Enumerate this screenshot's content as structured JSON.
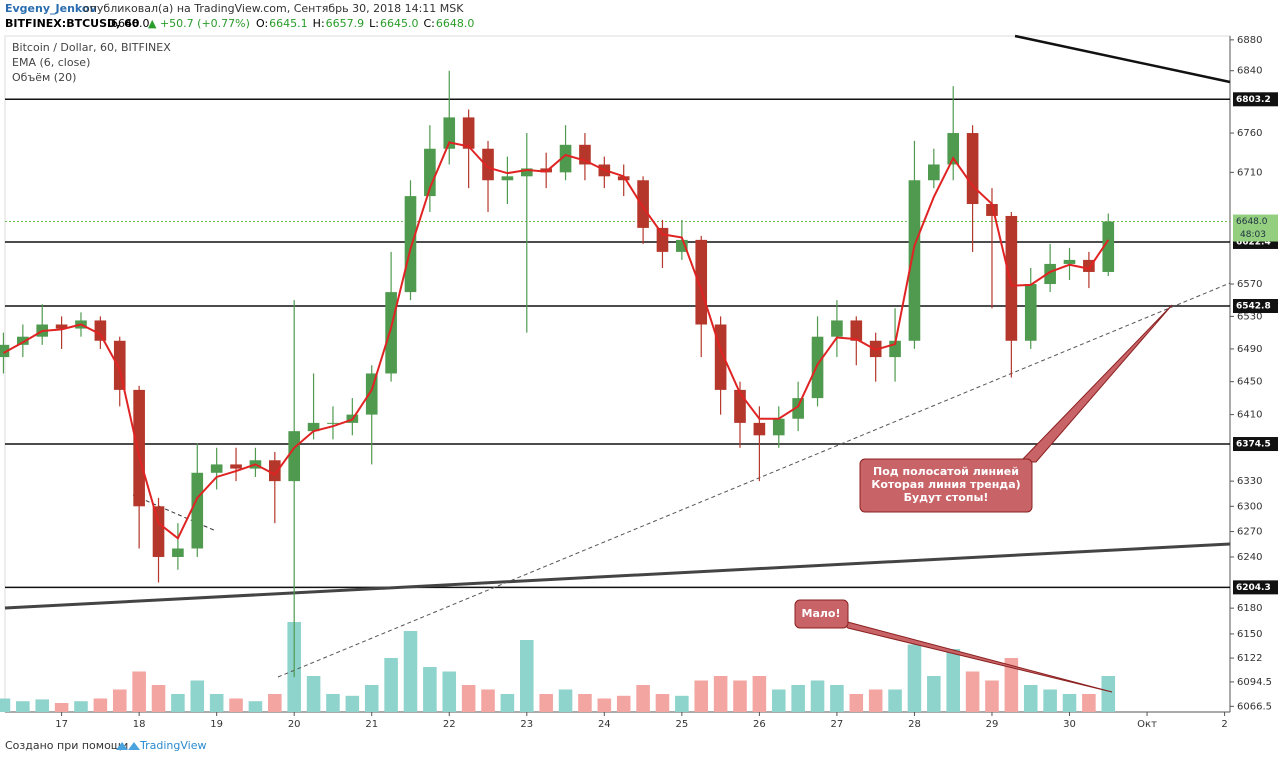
{
  "header": {
    "author": "Evgeny_Jenkov",
    "published": "опубликовал(а) на TradingView.com, Сентябрь 30, 2018 14:11 MSK",
    "symbol": "BITFINEX:BTCUSD, 60",
    "last": "6648.0",
    "change": "▲ +50.7 (+0.77%)",
    "ohlc": [
      {
        "label": "O:",
        "value": "6645.1"
      },
      {
        "label": "H:",
        "value": "6657.9"
      },
      {
        "label": "L:",
        "value": "6645.0"
      },
      {
        "label": "C:",
        "value": "6648.0"
      }
    ]
  },
  "footer": {
    "text": "Создано при помощи",
    "brand": "TradingView"
  },
  "chart_data": {
    "type": "candlestick",
    "title": "Bitcoin / Dollar, 60, BITFINEX",
    "log_scale": true,
    "up_color": "#4f9a4f",
    "down_color": "#b5372b",
    "volume_up_color": "#8fd3cd",
    "volume_down_color": "#f3a5a1",
    "x": [
      16.25,
      16.5,
      16.75,
      17,
      17.25,
      17.5,
      17.75,
      18,
      18.25,
      18.5,
      18.75,
      19,
      19.25,
      19.5,
      19.75,
      20,
      20.25,
      20.5,
      20.75,
      21,
      21.25,
      21.5,
      21.75,
      22,
      22.25,
      22.5,
      22.75,
      23,
      23.25,
      23.5,
      23.75,
      24,
      24.25,
      24.5,
      24.75,
      25,
      25.25,
      25.5,
      25.75,
      26,
      26.25,
      26.5,
      26.75,
      27,
      27.25,
      27.5,
      27.75,
      28,
      28.25,
      28.5,
      28.75,
      29,
      29.25,
      29.5,
      29.75,
      30,
      30.25,
      30.5
    ],
    "open": [
      6480,
      6495,
      6505,
      6520,
      6515,
      6525,
      6500,
      6440,
      6300,
      6240,
      6250,
      6340,
      6350,
      6345,
      6355,
      6330,
      6390,
      6400,
      6400,
      6410,
      6460,
      6560,
      6680,
      6740,
      6780,
      6740,
      6700,
      6705,
      6715,
      6710,
      6745,
      6720,
      6705,
      6700,
      6640,
      6610,
      6625,
      6520,
      6440,
      6400,
      6385,
      6405,
      6430,
      6505,
      6525,
      6500,
      6480,
      6500,
      6700,
      6720,
      6760,
      6670,
      6655,
      6500,
      6570,
      6595,
      6600,
      6585
    ],
    "high": [
      6510,
      6520,
      6545,
      6530,
      6535,
      6530,
      6505,
      6445,
      6310,
      6280,
      6375,
      6370,
      6370,
      6370,
      6365,
      6550,
      6460,
      6420,
      6430,
      6470,
      6610,
      6700,
      6770,
      6840,
      6790,
      6750,
      6730,
      6760,
      6735,
      6770,
      6760,
      6730,
      6720,
      6705,
      6650,
      6650,
      6630,
      6530,
      6450,
      6420,
      6420,
      6450,
      6530,
      6550,
      6530,
      6510,
      6540,
      6750,
      6740,
      6820,
      6770,
      6690,
      6660,
      6590,
      6620,
      6615,
      6610,
      6658
    ],
    "low": [
      6460,
      6480,
      6495,
      6490,
      6505,
      6490,
      6420,
      6250,
      6210,
      6225,
      6240,
      6320,
      6330,
      6335,
      6280,
      6100,
      6380,
      6380,
      6385,
      6350,
      6450,
      6550,
      6660,
      6720,
      6690,
      6660,
      6670,
      6510,
      6690,
      6700,
      6700,
      6690,
      6680,
      6620,
      6590,
      6600,
      6480,
      6410,
      6370,
      6330,
      6370,
      6390,
      6420,
      6480,
      6470,
      6450,
      6450,
      6490,
      6690,
      6700,
      6610,
      6540,
      6455,
      6490,
      6560,
      6575,
      6565,
      6580
    ],
    "close": [
      6495,
      6505,
      6520,
      6515,
      6525,
      6500,
      6440,
      6300,
      6240,
      6250,
      6340,
      6350,
      6345,
      6355,
      6330,
      6390,
      6400,
      6400,
      6410,
      6460,
      6560,
      6680,
      6740,
      6780,
      6740,
      6700,
      6705,
      6715,
      6710,
      6745,
      6720,
      6705,
      6700,
      6640,
      6610,
      6625,
      6520,
      6440,
      6400,
      6385,
      6405,
      6430,
      6505,
      6525,
      6500,
      6480,
      6500,
      6700,
      6720,
      6760,
      6670,
      6655,
      6500,
      6570,
      6595,
      6600,
      6585,
      6648
    ],
    "series": [
      {
        "name": "EMA (6, close)",
        "color": "#e02424",
        "values": [
          6485,
          6498,
          6512,
          6514,
          6520,
          6508,
          6465,
          6360,
          6280,
          6262,
          6310,
          6335,
          6342,
          6350,
          6338,
          6370,
          6390,
          6396,
          6404,
          6440,
          6516,
          6614,
          6690,
          6748,
          6743,
          6716,
          6709,
          6713,
          6711,
          6732,
          6725,
          6713,
          6705,
          6666,
          6632,
          6628,
          6563,
          6489,
          6436,
          6405,
          6405,
          6420,
          6471,
          6504,
          6502,
          6489,
          6496,
          6618,
          6679,
          6728,
          6693,
          6670,
          6568,
          6569,
          6585,
          6594,
          6589,
          6625
        ]
      }
    ],
    "volume": {
      "name": "Объём (20)",
      "ylim": [
        0,
        100
      ],
      "values": [
        15,
        12,
        14,
        10,
        12,
        15,
        25,
        45,
        30,
        20,
        35,
        20,
        15,
        12,
        20,
        100,
        40,
        20,
        18,
        30,
        60,
        90,
        50,
        45,
        30,
        25,
        20,
        80,
        20,
        25,
        20,
        15,
        18,
        30,
        20,
        18,
        35,
        40,
        35,
        40,
        25,
        30,
        35,
        30,
        20,
        25,
        25,
        75,
        40,
        70,
        45,
        35,
        60,
        30,
        25,
        20,
        20,
        40
      ]
    },
    "levels": [
      6803.2,
      6622.4,
      6542.8,
      6374.5,
      6204.3
    ],
    "last_price": 6648,
    "last_price_label": "6648.0",
    "countdown": "48:03",
    "xlim": [
      16.27,
      32.07
    ],
    "ylim": [
      6060,
      6885
    ],
    "xticks": [
      17,
      18,
      19,
      20,
      21,
      22,
      23,
      24,
      25,
      26,
      27,
      28,
      29,
      30,
      {
        "value": 31,
        "label": "Окт"
      },
      {
        "value": 32,
        "label": "2"
      }
    ],
    "yticks": [
      6880,
      6840,
      6760,
      6710,
      6570,
      6530,
      6490,
      6450,
      6410,
      6330,
      6300,
      6270,
      6240,
      6180,
      6150,
      6122,
      6094.5,
      6066.5
    ],
    "annotations": [
      {
        "lines": [
          "Под полосатой линией",
          "Которая линия тренда)",
          "Будут стопы!"
        ]
      },
      {
        "lines": [
          "Мало!"
        ]
      }
    ]
  }
}
